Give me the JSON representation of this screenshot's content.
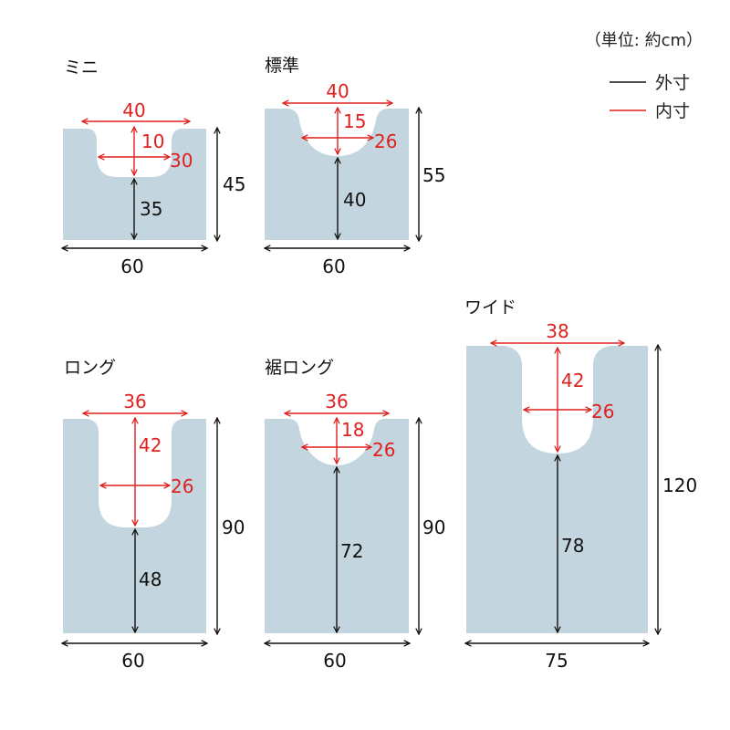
{
  "legend": {
    "unit_note": "（単位: 約cm）",
    "outer_label": "外寸",
    "inner_label": "内寸",
    "outer_color": "#111111",
    "inner_color": "#e0201e"
  },
  "colors": {
    "mat": "#c3d6df",
    "outer_line": "#111111",
    "inner_line": "#e0201e",
    "background": "#ffffff"
  },
  "mats": [
    {
      "name": "ミニ",
      "outer_width": "60",
      "outer_height": "45",
      "cutout_width": "40",
      "cutout_depth": "10",
      "cutout_inner_width": "30",
      "bottom_length": "35"
    },
    {
      "name": "標準",
      "outer_width": "60",
      "outer_height": "55",
      "cutout_width": "40",
      "cutout_depth": "15",
      "cutout_inner_width": "26",
      "bottom_length": "40"
    },
    {
      "name": "ロング",
      "outer_width": "60",
      "outer_height": "90",
      "cutout_width": "36",
      "cutout_depth": "42",
      "cutout_inner_width": "26",
      "bottom_length": "48"
    },
    {
      "name": "裾ロング",
      "outer_width": "60",
      "outer_height": "90",
      "cutout_width": "36",
      "cutout_depth": "18",
      "cutout_inner_width": "26",
      "bottom_length": "72"
    },
    {
      "name": "ワイド",
      "outer_width": "75",
      "outer_height": "120",
      "cutout_width": "38",
      "cutout_depth": "42",
      "cutout_inner_width": "26",
      "bottom_length": "78"
    }
  ]
}
